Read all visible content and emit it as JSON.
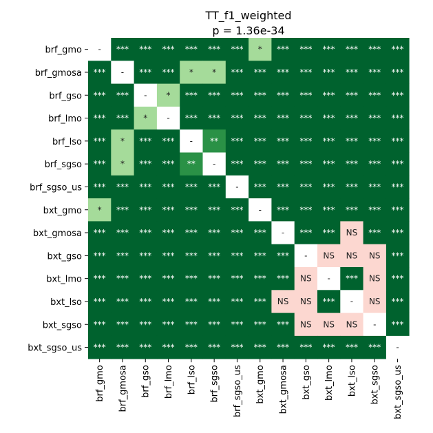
{
  "chart_data": {
    "type": "heatmap",
    "title": "TT_f1_weighted",
    "subtitle": "p = 1.36e-34",
    "rows": [
      "brf_gmo",
      "brf_gmosa",
      "brf_gso",
      "brf_lmo",
      "brf_lso",
      "brf_sgso",
      "brf_sgso_us",
      "bxt_gmo",
      "bxt_gmosa",
      "bxt_gso",
      "bxt_lmo",
      "bxt_lso",
      "bxt_sgso",
      "bxt_sgso_us"
    ],
    "columns": [
      "brf_gmo",
      "brf_gmosa",
      "brf_gso",
      "brf_lmo",
      "brf_lso",
      "brf_sgso",
      "brf_sgso_us",
      "bxt_gmo",
      "bxt_gmosa",
      "bxt_gso",
      "bxt_lmo",
      "bxt_lso",
      "bxt_sgso",
      "bxt_sgso_us"
    ],
    "cells": [
      [
        "-",
        "***",
        "***",
        "***",
        "***",
        "***",
        "***",
        "*",
        "***",
        "***",
        "***",
        "***",
        "***",
        "***"
      ],
      [
        "***",
        "-",
        "***",
        "***",
        "*",
        "*",
        "***",
        "***",
        "***",
        "***",
        "***",
        "***",
        "***",
        "***"
      ],
      [
        "***",
        "***",
        "-",
        "*",
        "***",
        "***",
        "***",
        "***",
        "***",
        "***",
        "***",
        "***",
        "***",
        "***"
      ],
      [
        "***",
        "***",
        "*",
        "-",
        "***",
        "***",
        "***",
        "***",
        "***",
        "***",
        "***",
        "***",
        "***",
        "***"
      ],
      [
        "***",
        "*",
        "***",
        "***",
        "-",
        "**",
        "***",
        "***",
        "***",
        "***",
        "***",
        "***",
        "***",
        "***"
      ],
      [
        "***",
        "*",
        "***",
        "***",
        "**",
        "-",
        "***",
        "***",
        "***",
        "***",
        "***",
        "***",
        "***",
        "***"
      ],
      [
        "***",
        "***",
        "***",
        "***",
        "***",
        "***",
        "-",
        "***",
        "***",
        "***",
        "***",
        "***",
        "***",
        "***"
      ],
      [
        "*",
        "***",
        "***",
        "***",
        "***",
        "***",
        "***",
        "-",
        "***",
        "***",
        "***",
        "***",
        "***",
        "***"
      ],
      [
        "***",
        "***",
        "***",
        "***",
        "***",
        "***",
        "***",
        "***",
        "-",
        "***",
        "***",
        "NS",
        "***",
        "***"
      ],
      [
        "***",
        "***",
        "***",
        "***",
        "***",
        "***",
        "***",
        "***",
        "***",
        "-",
        "NS",
        "NS",
        "NS",
        "***"
      ],
      [
        "***",
        "***",
        "***",
        "***",
        "***",
        "***",
        "***",
        "***",
        "***",
        "NS",
        "-",
        "***",
        "NS",
        "***"
      ],
      [
        "***",
        "***",
        "***",
        "***",
        "***",
        "***",
        "***",
        "***",
        "NS",
        "NS",
        "***",
        "-",
        "NS",
        "***"
      ],
      [
        "***",
        "***",
        "***",
        "***",
        "***",
        "***",
        "***",
        "***",
        "***",
        "NS",
        "NS",
        "NS",
        "-",
        "***"
      ],
      [
        "***",
        "***",
        "***",
        "***",
        "***",
        "***",
        "***",
        "***",
        "***",
        "***",
        "***",
        "***",
        "***",
        "-"
      ]
    ],
    "colors": {
      "***": "#00622e",
      "**": "#2a9146",
      "*": "#a5db9a",
      "NS": "#fcd7d0",
      "-": "#ffffff"
    },
    "text_colors": {
      "***": "#ffffff",
      "**": "#ffffff",
      "*": "#222222",
      "NS": "#222222",
      "-": "#222222"
    }
  }
}
